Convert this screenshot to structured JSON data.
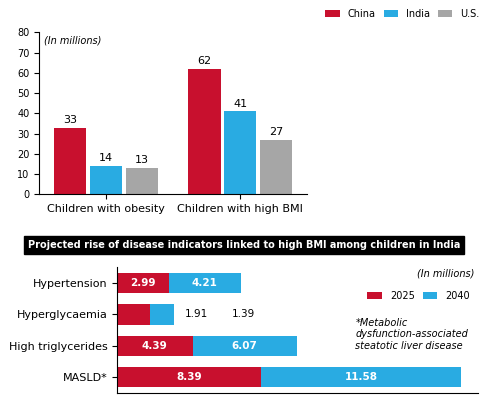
{
  "chart_data": [
    {
      "type": "bar",
      "annotations": [
        "(In millions)"
      ],
      "categories": [
        "Children with obesity",
        "Children with high BMI"
      ],
      "series": [
        {
          "name": "China",
          "color": "#c8102e",
          "values": [
            33,
            62
          ]
        },
        {
          "name": "India",
          "color": "#29abe2",
          "values": [
            14,
            41
          ]
        },
        {
          "name": "U.S.",
          "color": "#a6a6a6",
          "values": [
            13,
            27
          ]
        }
      ],
      "ylim": [
        0,
        80
      ],
      "yticks": [
        0,
        10,
        20,
        30,
        40,
        50,
        60,
        70,
        80
      ],
      "grid": false,
      "legend": "upper right",
      "data_labels": true
    },
    {
      "type": "bar",
      "title": "Projected rise of disease indicators linked to high BMI among children in India",
      "annotations": [
        "(In millions)",
        "*Metabolic dysfunction-associated steatotic liver disease"
      ],
      "orientation": "horizontal",
      "stacked": true,
      "categories": [
        "Hypertension",
        "Hyperglycaemia",
        "High triglycerides",
        "MASLD*"
      ],
      "series": [
        {
          "name": "2025",
          "color": "#c8102e",
          "values": [
            2.99,
            1.91,
            4.39,
            8.39
          ]
        },
        {
          "name": "2040",
          "color": "#29abe2",
          "values": [
            4.21,
            1.39,
            6.07,
            11.58
          ]
        }
      ],
      "xlim": [
        0,
        21
      ],
      "tick_labels": "y",
      "grid": false,
      "legend": "upper right",
      "data_labels": true
    }
  ]
}
